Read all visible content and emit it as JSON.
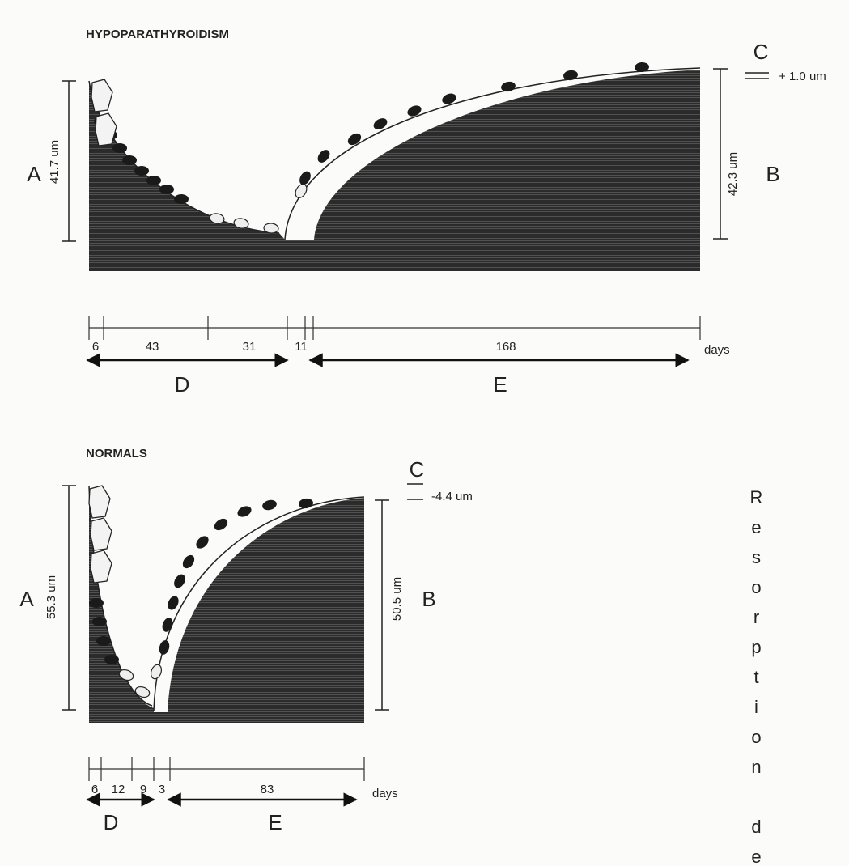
{
  "panels": [
    {
      "title": "HYPOPARATHYROIDISM",
      "a_label": "A",
      "a_measure": "41.7 um",
      "b_label": "B",
      "b_measure": "42.3 um",
      "c_label": "C",
      "c_measure": "+ 1.0 um",
      "timeline": [
        "6",
        "43",
        "31",
        "11",
        "168"
      ],
      "days": "days",
      "d_label": "D",
      "e_label": "E"
    },
    {
      "title": "NORMALS",
      "a_label": "A",
      "a_measure": "55.3 um",
      "b_label": "B",
      "b_measure": "50.5 um",
      "c_label": "C",
      "c_measure": "-4.4 um",
      "timeline": [
        "6",
        "12",
        "9",
        "3",
        "83"
      ],
      "days": "days",
      "d_label": "D",
      "e_label": "E"
    }
  ],
  "side_text": "Resorption dep"
}
